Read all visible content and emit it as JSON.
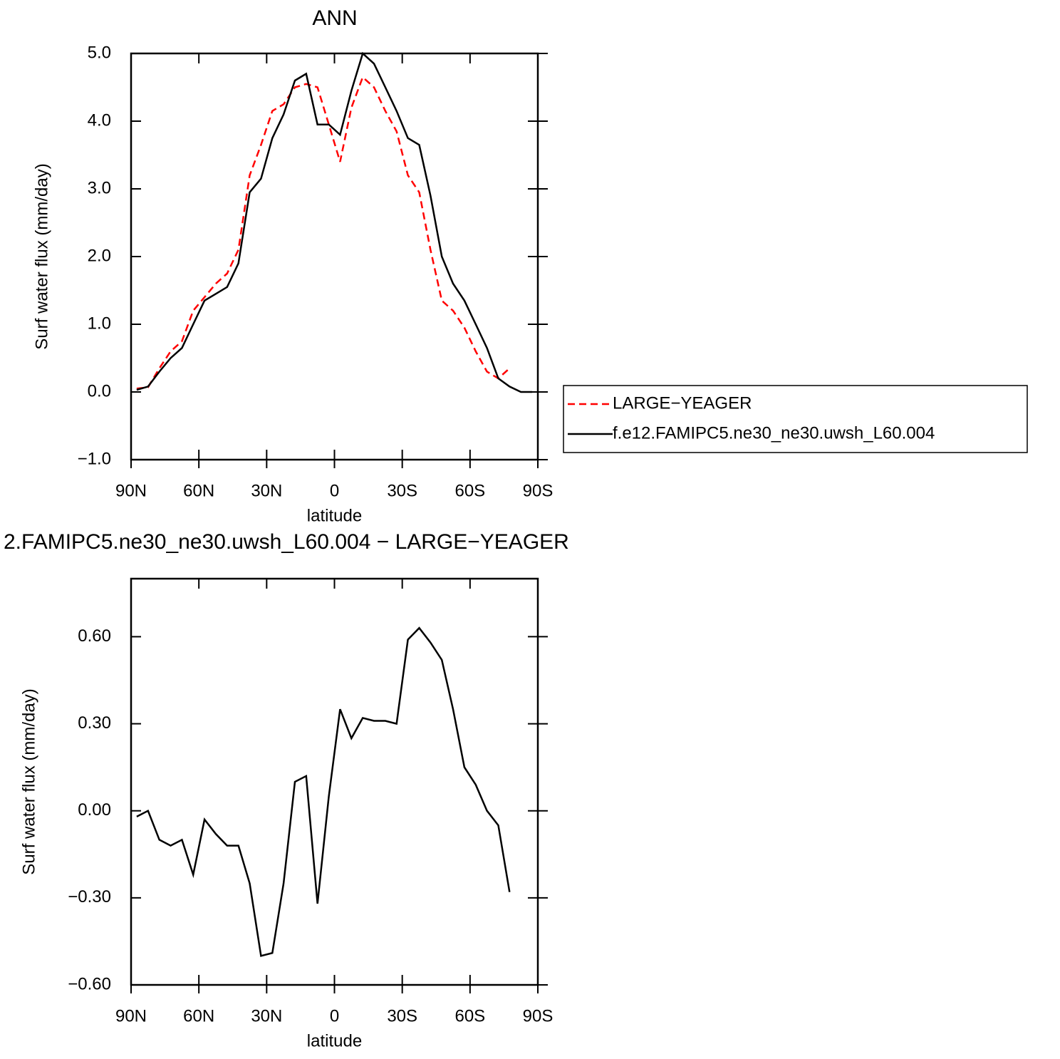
{
  "chart_data": [
    {
      "type": "line",
      "title": "ANN",
      "xlabel": "latitude",
      "ylabel": "Surf water flux (mm/day)",
      "x": [
        87.5,
        82.5,
        77.5,
        72.5,
        67.5,
        62.5,
        57.5,
        52.5,
        47.5,
        42.5,
        37.5,
        32.5,
        27.5,
        22.5,
        17.5,
        12.5,
        7.5,
        2.5,
        -2.5,
        -7.5,
        -12.5,
        -17.5,
        -22.5,
        -27.5,
        -32.5,
        -37.5,
        -42.5,
        -47.5,
        -52.5,
        -57.5,
        -62.5,
        -67.5,
        -72.5,
        -77.5,
        -82.5,
        -87.5
      ],
      "xlim": [
        90,
        -90
      ],
      "xticks": [
        {
          "value": 90,
          "label": "90N"
        },
        {
          "value": 60,
          "label": "60N"
        },
        {
          "value": 30,
          "label": "30N"
        },
        0,
        {
          "value": -30,
          "label": "30S"
        },
        {
          "value": -60,
          "label": "60S"
        },
        {
          "value": -90,
          "label": "90S"
        }
      ],
      "ylim": [
        -1,
        5
      ],
      "yticks": [
        {
          "value": -1,
          "label": "−1.0"
        },
        {
          "value": 0,
          "label": "0.0"
        },
        {
          "value": 1,
          "label": "1.0"
        },
        {
          "value": 2,
          "label": "2.0"
        },
        {
          "value": 3,
          "label": "3.0"
        },
        {
          "value": 4,
          "label": "4.0"
        },
        {
          "value": 5,
          "label": "5.0"
        }
      ],
      "legend": "outside right",
      "series": [
        {
          "name": "LARGE−YEAGER",
          "color": "#ff0000",
          "dashed": true,
          "values": [
            0.05,
            0.07,
            0.35,
            0.6,
            0.75,
            1.2,
            1.4,
            1.6,
            1.75,
            2.1,
            3.2,
            3.65,
            4.15,
            4.25,
            4.5,
            4.55,
            4.5,
            3.95,
            3.4,
            4.2,
            4.65,
            4.5,
            4.15,
            3.85,
            3.2,
            2.95,
            2.1,
            1.35,
            1.2,
            0.95,
            0.6,
            0.3,
            0.2,
            0.35,
            null,
            null
          ]
        },
        {
          "name": "f.e12.FAMIPC5.ne30_ne30.uwsh_L60.004",
          "color": "#000000",
          "dashed": false,
          "values": [
            0.03,
            0.08,
            0.3,
            0.5,
            0.65,
            1.0,
            1.35,
            1.45,
            1.55,
            1.9,
            2.95,
            3.15,
            3.75,
            4.1,
            4.6,
            4.7,
            3.95,
            3.95,
            3.8,
            4.45,
            5.0,
            4.85,
            4.5,
            4.15,
            3.75,
            3.65,
            2.9,
            2.0,
            1.6,
            1.35,
            1.0,
            0.65,
            0.2,
            0.08,
            0.0,
            0.0
          ]
        }
      ]
    },
    {
      "type": "line",
      "title": "2.FAMIPC5.ne30_ne30.uwsh_L60.004 − LARGE−YEAGER",
      "xlabel": "latitude",
      "ylabel": "Surf water flux (mm/day)",
      "x": [
        87.5,
        82.5,
        77.5,
        72.5,
        67.5,
        62.5,
        57.5,
        52.5,
        47.5,
        42.5,
        37.5,
        32.5,
        27.5,
        22.5,
        17.5,
        12.5,
        7.5,
        2.5,
        -2.5,
        -7.5,
        -12.5,
        -17.5,
        -22.5,
        -27.5,
        -32.5,
        -37.5,
        -42.5,
        -47.5,
        -52.5,
        -57.5,
        -62.5,
        -67.5,
        -72.5,
        -77.5,
        -82.5,
        -87.5
      ],
      "xlim": [
        90,
        -90
      ],
      "xticks": [
        {
          "value": 90,
          "label": "90N"
        },
        {
          "value": 60,
          "label": "60N"
        },
        {
          "value": 30,
          "label": "30N"
        },
        0,
        {
          "value": -30,
          "label": "30S"
        },
        {
          "value": -60,
          "label": "60S"
        },
        {
          "value": -90,
          "label": "90S"
        }
      ],
      "ylim": [
        -0.6,
        0.8
      ],
      "yticks": [
        {
          "value": -0.6,
          "label": "−0.60"
        },
        {
          "value": -0.3,
          "label": "−0.30"
        },
        {
          "value": 0,
          "label": "0.00"
        },
        {
          "value": 0.3,
          "label": "0.30"
        },
        {
          "value": 0.6,
          "label": "0.60"
        }
      ],
      "series": [
        {
          "color": "#000000",
          "dashed": false,
          "values": [
            -0.02,
            0.0,
            -0.1,
            -0.12,
            -0.1,
            -0.22,
            -0.03,
            -0.08,
            -0.12,
            -0.12,
            -0.25,
            -0.5,
            -0.49,
            -0.25,
            0.1,
            0.12,
            -0.32,
            0.05,
            0.35,
            0.25,
            0.32,
            0.31,
            0.31,
            0.3,
            0.59,
            0.63,
            0.58,
            0.52,
            0.35,
            0.15,
            0.09,
            0.0,
            -0.05,
            -0.28,
            null,
            null
          ]
        }
      ]
    }
  ]
}
